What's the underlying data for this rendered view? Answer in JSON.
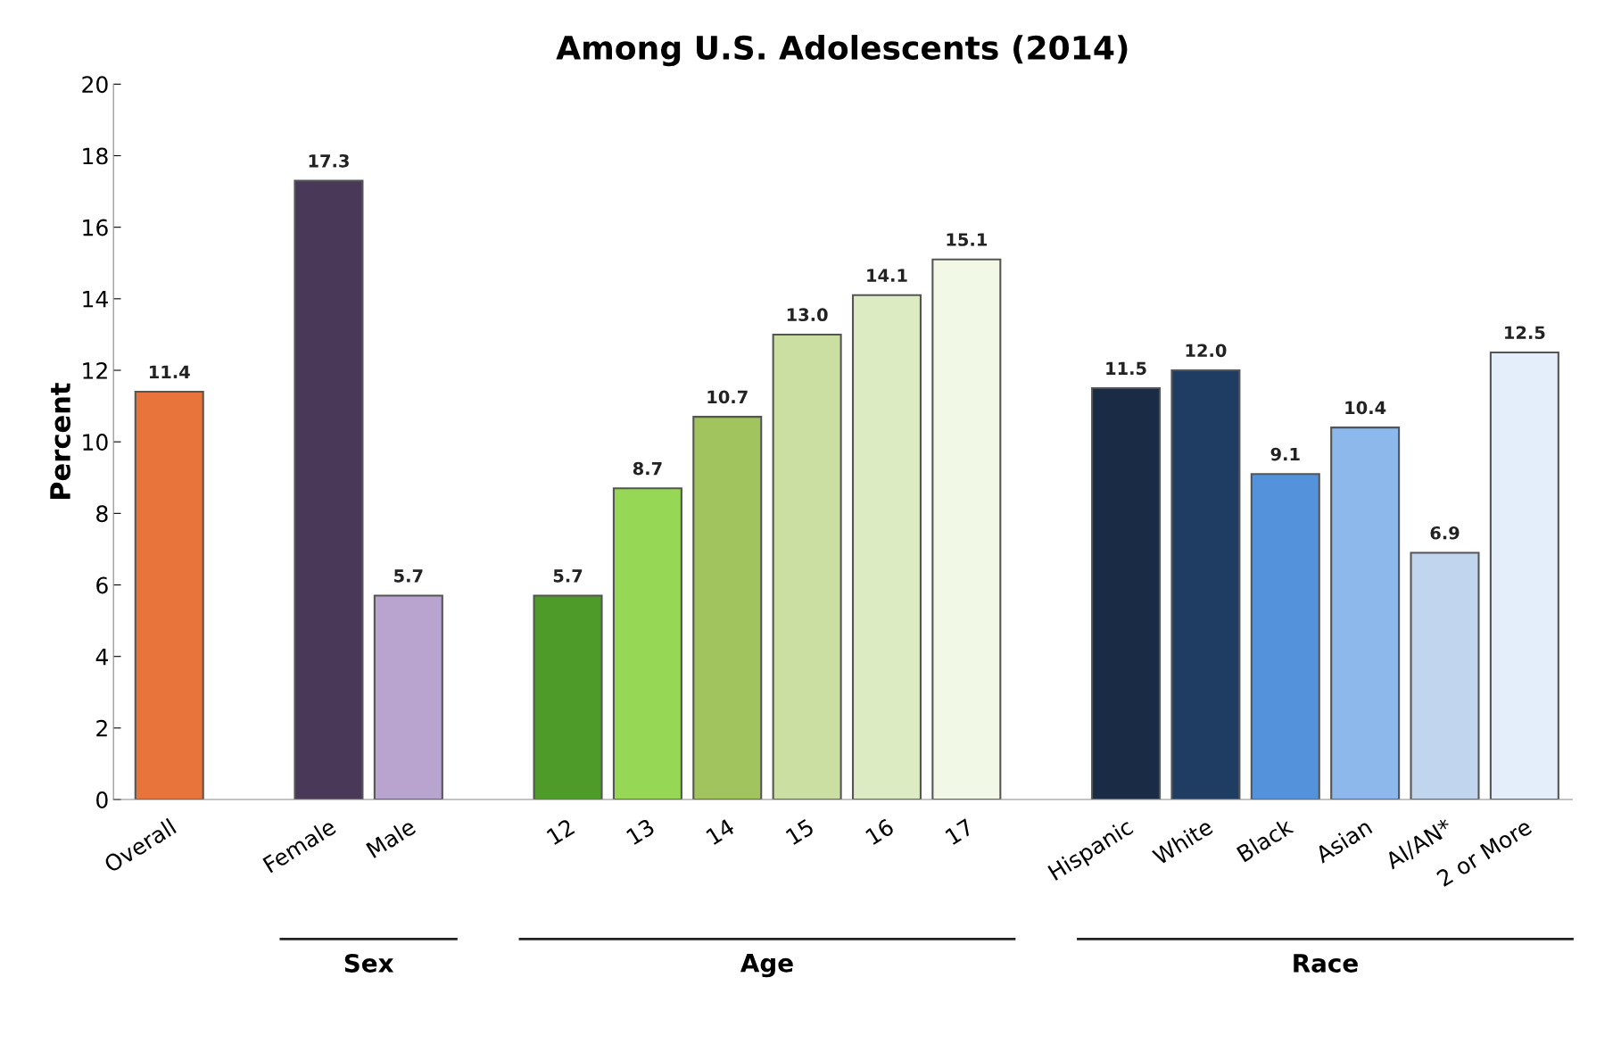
{
  "chart_data": {
    "type": "bar",
    "title": "Among U.S. Adolescents (2014)",
    "ylabel": "Percent",
    "categories": [
      "Overall",
      null,
      "Female",
      "Male",
      null,
      "12",
      "13",
      "14",
      "15",
      "16",
      "17",
      null,
      "Hispanic",
      "White",
      "Black",
      "Asian",
      "AI/AN*",
      "2 or More"
    ],
    "values": [
      11.4,
      null,
      17.3,
      5.7,
      null,
      5.7,
      8.7,
      10.7,
      13.0,
      14.1,
      15.1,
      null,
      11.5,
      12.0,
      9.1,
      10.4,
      6.9,
      12.5
    ],
    "value_labels": [
      "11.4",
      null,
      "17.3",
      "5.7",
      null,
      "5.7",
      "8.7",
      "10.7",
      "13.0",
      "14.1",
      "15.1",
      null,
      "11.5",
      "12.0",
      "9.1",
      "10.4",
      "6.9",
      "12.5"
    ],
    "colors": [
      "#e8743b",
      "#ffffff",
      "#4a3858",
      "#b9a3cf",
      "#ffffff",
      "#4e9b2a",
      "#96d855",
      "#a2c45e",
      "#cadfa1",
      "#dcebc1",
      "#f1f8e6",
      "#ffffff",
      "#1a2b45",
      "#1f3c62",
      "#5592dc",
      "#8cb8ec",
      "#c2d5ee",
      "#e4eefa"
    ],
    "ylim": [
      0,
      20
    ],
    "yticks": [
      0,
      2,
      4,
      6,
      8,
      10,
      12,
      14,
      16,
      18,
      20
    ],
    "annotations": [
      "Sex",
      "Age",
      "Race"
    ],
    "grid": false,
    "legend": false
  }
}
